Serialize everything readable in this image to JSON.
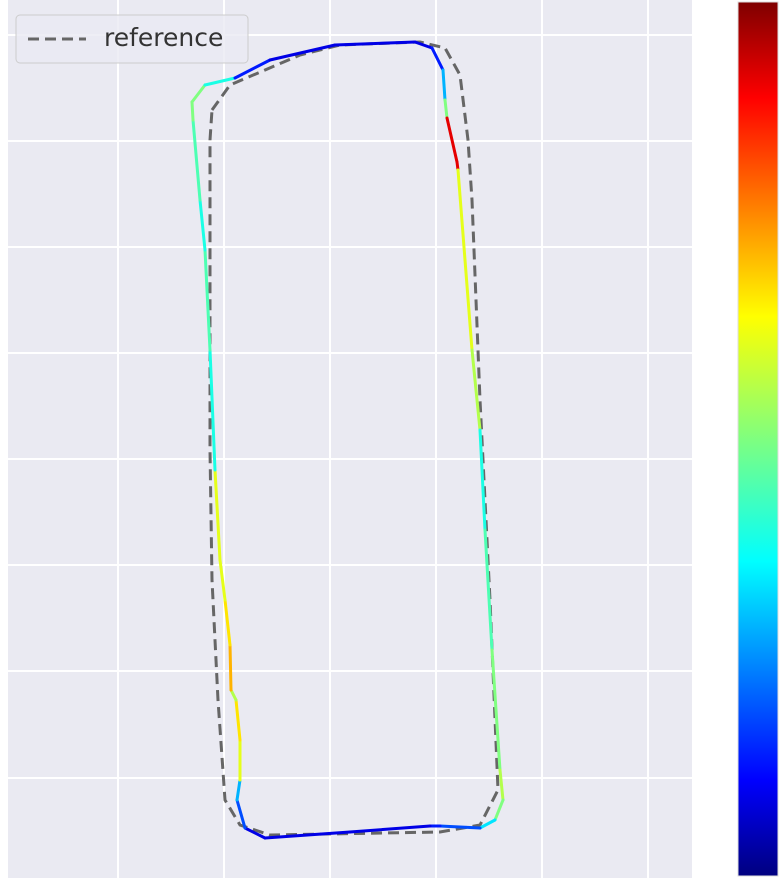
{
  "chart_data": {
    "type": "trajectory",
    "xlim": [
      8,
      692
    ],
    "ylim": [
      0,
      878
    ],
    "xticks": [
      118,
      224,
      330,
      436,
      542,
      648
    ],
    "yticks": [
      100,
      207,
      313,
      419,
      525,
      631,
      737,
      843
    ],
    "grid": true,
    "legend": "upper left",
    "color_range": [
      0,
      1
    ],
    "series": [
      {
        "name": "reference",
        "color": "#666666",
        "x": [
          212,
          230,
          300,
          340,
          420,
          445,
          460,
          468,
          472,
          480,
          490,
          498,
          480,
          440,
          270,
          240,
          225,
          218,
          212,
          210,
          210,
          210,
          212
        ],
        "y": [
          768,
          793,
          823,
          833,
          836,
          830,
          803,
          738,
          678,
          478,
          278,
          88,
          53,
          46,
          43,
          53,
          78,
          178,
          298,
          428,
          628,
          738,
          768
        ]
      }
    ],
    "trajectory": {
      "x": [
        192,
        205,
        235,
        270,
        335,
        415,
        432,
        443,
        445,
        447,
        457,
        458,
        465,
        472,
        480,
        485,
        492,
        500,
        503,
        495,
        480,
        440,
        430,
        350,
        265,
        245,
        237,
        240,
        240,
        236,
        231,
        230,
        225,
        220,
        215,
        210,
        205,
        200,
        193,
        192
      ],
      "y": [
        776,
        793,
        800,
        818,
        833,
        836,
        830,
        808,
        778,
        760,
        716,
        708,
        618,
        528,
        448,
        348,
        228,
        108,
        78,
        58,
        50,
        52,
        52,
        46,
        40,
        50,
        78,
        98,
        138,
        178,
        188,
        233,
        278,
        318,
        408,
        528,
        628,
        678,
        758,
        776
      ],
      "values": [
        0.5,
        0.4,
        0.15,
        0.1,
        0.1,
        0.1,
        0.15,
        0.3,
        0.5,
        0.9,
        0.9,
        0.6,
        0.6,
        0.55,
        0.4,
        0.45,
        0.5,
        0.55,
        0.5,
        0.35,
        0.2,
        0.15,
        0.1,
        0.1,
        0.1,
        0.2,
        0.3,
        0.6,
        0.65,
        0.55,
        0.7,
        0.65,
        0.6,
        0.6,
        0.4,
        0.45,
        0.4,
        0.45,
        0.5,
        0.5
      ]
    }
  }
}
